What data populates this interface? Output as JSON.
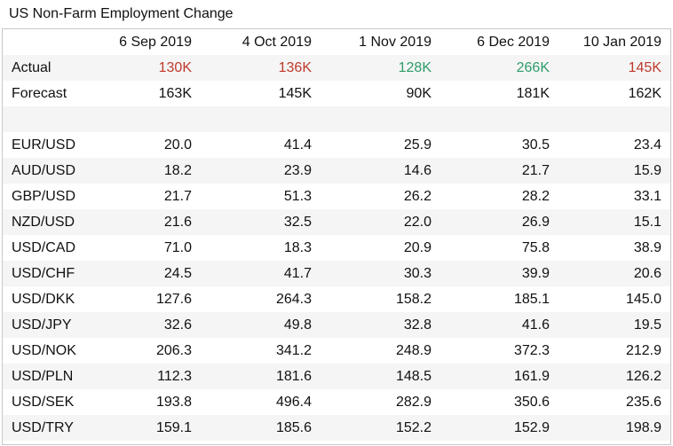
{
  "title": "US Non-Farm Employment Change",
  "columns": [
    "",
    "6 Sep 2019",
    "4 Oct 2019",
    "1 Nov 2019",
    "6 Dec 2019",
    "10 Jan 2019"
  ],
  "actual": {
    "label": "Actual",
    "values": [
      "130K",
      "136K",
      "128K",
      "266K",
      "145K"
    ],
    "status": [
      "neg",
      "neg",
      "pos",
      "pos",
      "neg"
    ]
  },
  "forecast": {
    "label": "Forecast",
    "values": [
      "163K",
      "145K",
      "90K",
      "181K",
      "162K"
    ]
  },
  "pairs": [
    {
      "label": "EUR/USD",
      "values": [
        "20.0",
        "41.4",
        "25.9",
        "30.5",
        "23.4"
      ]
    },
    {
      "label": "AUD/USD",
      "values": [
        "18.2",
        "23.9",
        "14.6",
        "21.7",
        "15.9"
      ]
    },
    {
      "label": "GBP/USD",
      "values": [
        "21.7",
        "51.3",
        "26.2",
        "28.2",
        "33.1"
      ]
    },
    {
      "label": "NZD/USD",
      "values": [
        "21.6",
        "32.5",
        "22.0",
        "26.9",
        "15.1"
      ]
    },
    {
      "label": "USD/CAD",
      "values": [
        "71.0",
        "18.3",
        "20.9",
        "75.8",
        "38.9"
      ]
    },
    {
      "label": "USD/CHF",
      "values": [
        "24.5",
        "41.7",
        "30.3",
        "39.9",
        "20.6"
      ]
    },
    {
      "label": "USD/DKK",
      "values": [
        "127.6",
        "264.3",
        "158.2",
        "185.1",
        "145.0"
      ]
    },
    {
      "label": "USD/JPY",
      "values": [
        "32.6",
        "49.8",
        "32.8",
        "41.6",
        "19.5"
      ]
    },
    {
      "label": "USD/NOK",
      "values": [
        "206.3",
        "341.2",
        "248.9",
        "372.3",
        "212.9"
      ]
    },
    {
      "label": "USD/PLN",
      "values": [
        "112.3",
        "181.6",
        "148.5",
        "161.9",
        "126.2"
      ]
    },
    {
      "label": "USD/SEK",
      "values": [
        "193.8",
        "496.4",
        "282.9",
        "350.6",
        "235.6"
      ]
    },
    {
      "label": "USD/TRY",
      "values": [
        "159.1",
        "185.6",
        "152.2",
        "152.9",
        "198.9"
      ]
    }
  ],
  "colors": {
    "negative": "#c0392b",
    "positive": "#2e9c6a"
  }
}
